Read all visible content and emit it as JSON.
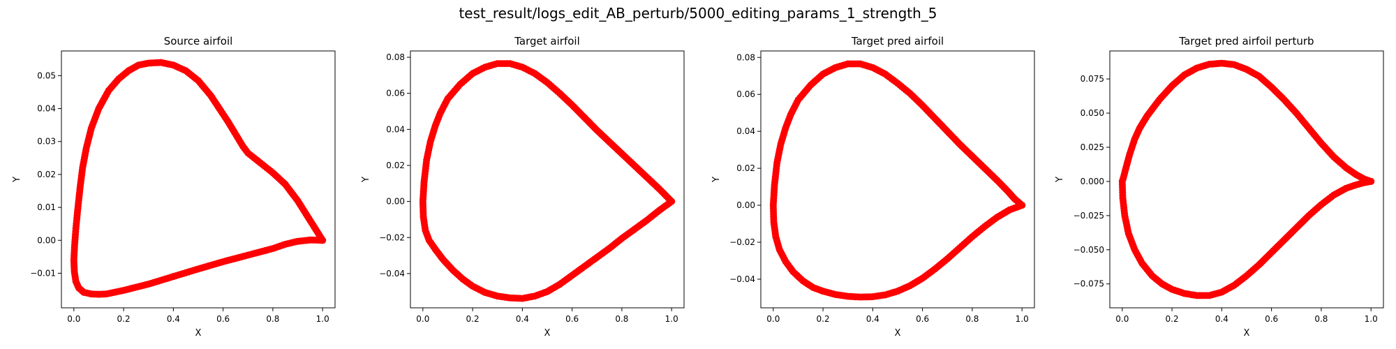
{
  "figure": {
    "suptitle": "test_result/logs_edit_AB_perturb/5000_editing_params_1_strength_5"
  },
  "marker_color": "#ff0000",
  "chart_data": [
    {
      "type": "scatter",
      "title": "Source airfoil",
      "xlabel": "X",
      "ylabel": "Y",
      "xlim": [
        -0.05,
        1.05
      ],
      "ylim": [
        -0.0205,
        0.0575
      ],
      "xticks": [
        0.0,
        0.2,
        0.4,
        0.6,
        0.8,
        1.0
      ],
      "yticks": [
        -0.01,
        0.0,
        0.01,
        0.02,
        0.03,
        0.04,
        0.05
      ],
      "xtick_labels": [
        "0.0",
        "0.2",
        "0.4",
        "0.6",
        "0.8",
        "1.0"
      ],
      "ytick_labels": [
        "−0.01",
        "0.00",
        "0.01",
        "0.02",
        "0.03",
        "0.04",
        "0.05"
      ],
      "x": [
        1.0,
        0.95,
        0.9,
        0.85,
        0.8,
        0.75,
        0.7,
        0.68,
        0.62,
        0.55,
        0.5,
        0.45,
        0.4,
        0.35,
        0.3,
        0.26,
        0.22,
        0.18,
        0.14,
        0.1,
        0.07,
        0.05,
        0.035,
        0.025,
        0.015,
        0.008,
        0.003,
        0.0,
        0.002,
        0.008,
        0.02,
        0.04,
        0.07,
        0.1,
        0.13,
        0.2,
        0.3,
        0.4,
        0.5,
        0.6,
        0.7,
        0.8,
        0.85,
        0.9,
        0.95,
        1.0
      ],
      "y": [
        0.0,
        0.006,
        0.012,
        0.017,
        0.0205,
        0.0235,
        0.0265,
        0.0285,
        0.036,
        0.044,
        0.0485,
        0.0515,
        0.0532,
        0.054,
        0.0538,
        0.0532,
        0.0515,
        0.049,
        0.0455,
        0.04,
        0.034,
        0.028,
        0.022,
        0.016,
        0.009,
        0.0035,
        -0.0015,
        -0.006,
        -0.0095,
        -0.0125,
        -0.0145,
        -0.0158,
        -0.0163,
        -0.0164,
        -0.0163,
        -0.0152,
        -0.0133,
        -0.011,
        -0.0087,
        -0.0065,
        -0.0045,
        -0.0025,
        -0.0012,
        -0.0003,
        0.0001,
        0.0
      ]
    },
    {
      "type": "scatter",
      "title": "Target airfoil",
      "xlabel": "X",
      "ylabel": "Y",
      "xlim": [
        -0.05,
        1.05
      ],
      "ylim": [
        -0.059,
        0.0835
      ],
      "xticks": [
        0.0,
        0.2,
        0.4,
        0.6,
        0.8,
        1.0
      ],
      "yticks": [
        -0.04,
        -0.02,
        0.0,
        0.02,
        0.04,
        0.06,
        0.08
      ],
      "xtick_labels": [
        "0.0",
        "0.2",
        "0.4",
        "0.6",
        "0.8",
        "1.0"
      ],
      "ytick_labels": [
        "−0.04",
        "−0.02",
        "0.00",
        "0.02",
        "0.04",
        "0.06",
        "0.08"
      ],
      "x": [
        1.0,
        0.95,
        0.9,
        0.85,
        0.8,
        0.75,
        0.7,
        0.65,
        0.6,
        0.55,
        0.5,
        0.45,
        0.4,
        0.35,
        0.3,
        0.25,
        0.2,
        0.15,
        0.1,
        0.07,
        0.05,
        0.03,
        0.015,
        0.005,
        0.0,
        0.002,
        0.01,
        0.025,
        0.05,
        0.08,
        0.12,
        0.16,
        0.2,
        0.25,
        0.3,
        0.35,
        0.4,
        0.45,
        0.5,
        0.55,
        0.6,
        0.65,
        0.7,
        0.75,
        0.8,
        0.85,
        0.9,
        0.95,
        1.0
      ],
      "y": [
        0.0,
        0.007,
        0.0135,
        0.02,
        0.0265,
        0.033,
        0.0395,
        0.0465,
        0.0535,
        0.06,
        0.066,
        0.071,
        0.0745,
        0.0765,
        0.0765,
        0.0745,
        0.071,
        0.065,
        0.057,
        0.049,
        0.042,
        0.033,
        0.023,
        0.011,
        0.0,
        -0.0085,
        -0.016,
        -0.0215,
        -0.0265,
        -0.032,
        -0.038,
        -0.043,
        -0.047,
        -0.0505,
        -0.0525,
        -0.0535,
        -0.0538,
        -0.0525,
        -0.05,
        -0.046,
        -0.041,
        -0.036,
        -0.031,
        -0.026,
        -0.0205,
        -0.0155,
        -0.0105,
        -0.005,
        0.0
      ]
    },
    {
      "type": "scatter",
      "title": "Target pred airfoil",
      "xlabel": "X",
      "ylabel": "Y",
      "xlim": [
        -0.05,
        1.05
      ],
      "ylim": [
        -0.0555,
        0.0835
      ],
      "xticks": [
        0.0,
        0.2,
        0.4,
        0.6,
        0.8,
        1.0
      ],
      "yticks": [
        -0.04,
        -0.02,
        0.0,
        0.02,
        0.04,
        0.06,
        0.08
      ],
      "xtick_labels": [
        "0.0",
        "0.2",
        "0.4",
        "0.6",
        "0.8",
        "1.0"
      ],
      "ytick_labels": [
        "−0.04",
        "−0.02",
        "0.00",
        "0.02",
        "0.04",
        "0.06",
        "0.08"
      ],
      "x": [
        1.0,
        0.97,
        0.94,
        0.9,
        0.85,
        0.8,
        0.75,
        0.7,
        0.65,
        0.6,
        0.55,
        0.5,
        0.45,
        0.4,
        0.35,
        0.3,
        0.25,
        0.2,
        0.15,
        0.1,
        0.07,
        0.05,
        0.03,
        0.015,
        0.005,
        0.0,
        0.002,
        0.01,
        0.025,
        0.05,
        0.08,
        0.12,
        0.16,
        0.2,
        0.25,
        0.3,
        0.35,
        0.4,
        0.45,
        0.5,
        0.55,
        0.6,
        0.65,
        0.7,
        0.75,
        0.8,
        0.85,
        0.9,
        0.95,
        1.0
      ],
      "y": [
        0.0,
        0.0035,
        0.008,
        0.0135,
        0.02,
        0.0265,
        0.033,
        0.04,
        0.047,
        0.054,
        0.0605,
        0.066,
        0.071,
        0.0745,
        0.0765,
        0.0765,
        0.0745,
        0.071,
        0.065,
        0.057,
        0.049,
        0.042,
        0.033,
        0.023,
        0.011,
        0.0,
        -0.009,
        -0.017,
        -0.024,
        -0.0305,
        -0.036,
        -0.041,
        -0.0445,
        -0.0465,
        -0.0483,
        -0.0493,
        -0.0497,
        -0.0495,
        -0.0485,
        -0.0465,
        -0.0435,
        -0.0395,
        -0.0345,
        -0.029,
        -0.023,
        -0.017,
        -0.0115,
        -0.0065,
        -0.0025,
        0.0
      ]
    },
    {
      "type": "scatter",
      "title": "Target pred airfoil perturb",
      "xlabel": "X",
      "ylabel": "Y",
      "xlim": [
        -0.05,
        1.05
      ],
      "ylim": [
        -0.0925,
        0.0955
      ],
      "xticks": [
        0.0,
        0.2,
        0.4,
        0.6,
        0.8,
        1.0
      ],
      "yticks": [
        -0.075,
        -0.05,
        -0.025,
        0.0,
        0.025,
        0.05,
        0.075
      ],
      "xtick_labels": [
        "0.0",
        "0.2",
        "0.4",
        "0.6",
        "0.8",
        "1.0"
      ],
      "ytick_labels": [
        "−0.075",
        "−0.050",
        "−0.025",
        "0.000",
        "0.025",
        "0.050",
        "0.075"
      ],
      "x": [
        1.0,
        0.97,
        0.94,
        0.9,
        0.85,
        0.8,
        0.75,
        0.7,
        0.65,
        0.6,
        0.55,
        0.5,
        0.45,
        0.4,
        0.35,
        0.3,
        0.25,
        0.2,
        0.15,
        0.1,
        0.07,
        0.05,
        0.03,
        0.015,
        0.005,
        0.0,
        0.002,
        0.01,
        0.025,
        0.05,
        0.08,
        0.12,
        0.16,
        0.2,
        0.25,
        0.3,
        0.35,
        0.4,
        0.45,
        0.5,
        0.55,
        0.6,
        0.65,
        0.7,
        0.75,
        0.8,
        0.85,
        0.9,
        0.94,
        0.97,
        1.0
      ],
      "y": [
        0.0,
        0.002,
        0.005,
        0.01,
        0.018,
        0.028,
        0.039,
        0.05,
        0.06,
        0.069,
        0.077,
        0.082,
        0.0855,
        0.0865,
        0.0858,
        0.083,
        0.078,
        0.07,
        0.06,
        0.048,
        0.039,
        0.031,
        0.02,
        0.01,
        0.003,
        0.0,
        -0.012,
        -0.025,
        -0.038,
        -0.05,
        -0.06,
        -0.069,
        -0.075,
        -0.079,
        -0.082,
        -0.0835,
        -0.0835,
        -0.081,
        -0.076,
        -0.069,
        -0.061,
        -0.052,
        -0.043,
        -0.034,
        -0.025,
        -0.017,
        -0.01,
        -0.005,
        -0.0025,
        -0.001,
        0.0
      ]
    }
  ]
}
